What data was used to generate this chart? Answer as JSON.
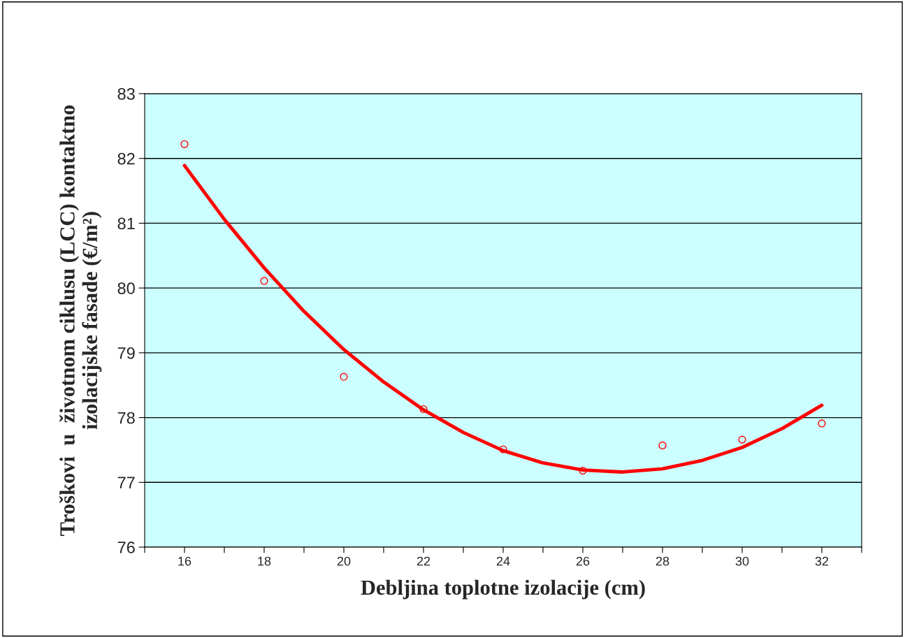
{
  "chart_data": {
    "type": "scatter",
    "xlabel": "Debljina toplotne izolacije (cm)",
    "ylabel": "Troškovi  u  životnom ciklusu (LCC) kontaktno\nizolacijske fasade (€/m²)",
    "x": [
      16,
      18,
      20,
      22,
      24,
      26,
      28,
      30,
      32
    ],
    "series": [
      {
        "color": "#ff0000",
        "marker": "circle",
        "values": [
          82.22,
          80.11,
          78.63,
          78.13,
          77.51,
          77.18,
          77.57,
          77.66,
          77.91
        ]
      },
      {
        "type": "line",
        "color": "#ff0000",
        "marker": "none",
        "line_style": "solid",
        "x": [
          16,
          17,
          18,
          19,
          20,
          21,
          22,
          23,
          24,
          25,
          26,
          27,
          28,
          29,
          30,
          31,
          32
        ],
        "values": [
          81.89,
          81.06,
          80.31,
          79.64,
          79.05,
          78.55,
          78.12,
          77.77,
          77.49,
          77.3,
          77.19,
          77.16,
          77.21,
          77.34,
          77.54,
          77.83,
          78.19
        ]
      }
    ],
    "xlim": [
      15,
      33
    ],
    "xticks": [
      {
        "value": 15,
        "label": null
      },
      16,
      {
        "value": 17,
        "label": null
      },
      18,
      {
        "value": 19,
        "label": null
      },
      20,
      {
        "value": 21,
        "label": null
      },
      22,
      {
        "value": 23,
        "label": null
      },
      24,
      {
        "value": 25,
        "label": null
      },
      26,
      {
        "value": 27,
        "label": null
      },
      28,
      {
        "value": 29,
        "label": null
      },
      30,
      {
        "value": 31,
        "label": null
      },
      32,
      {
        "value": 33,
        "label": null
      }
    ],
    "ylim": [
      76,
      83
    ],
    "yticks": [
      76,
      77,
      78,
      79,
      80,
      81,
      82,
      83
    ],
    "grid": "y"
  }
}
